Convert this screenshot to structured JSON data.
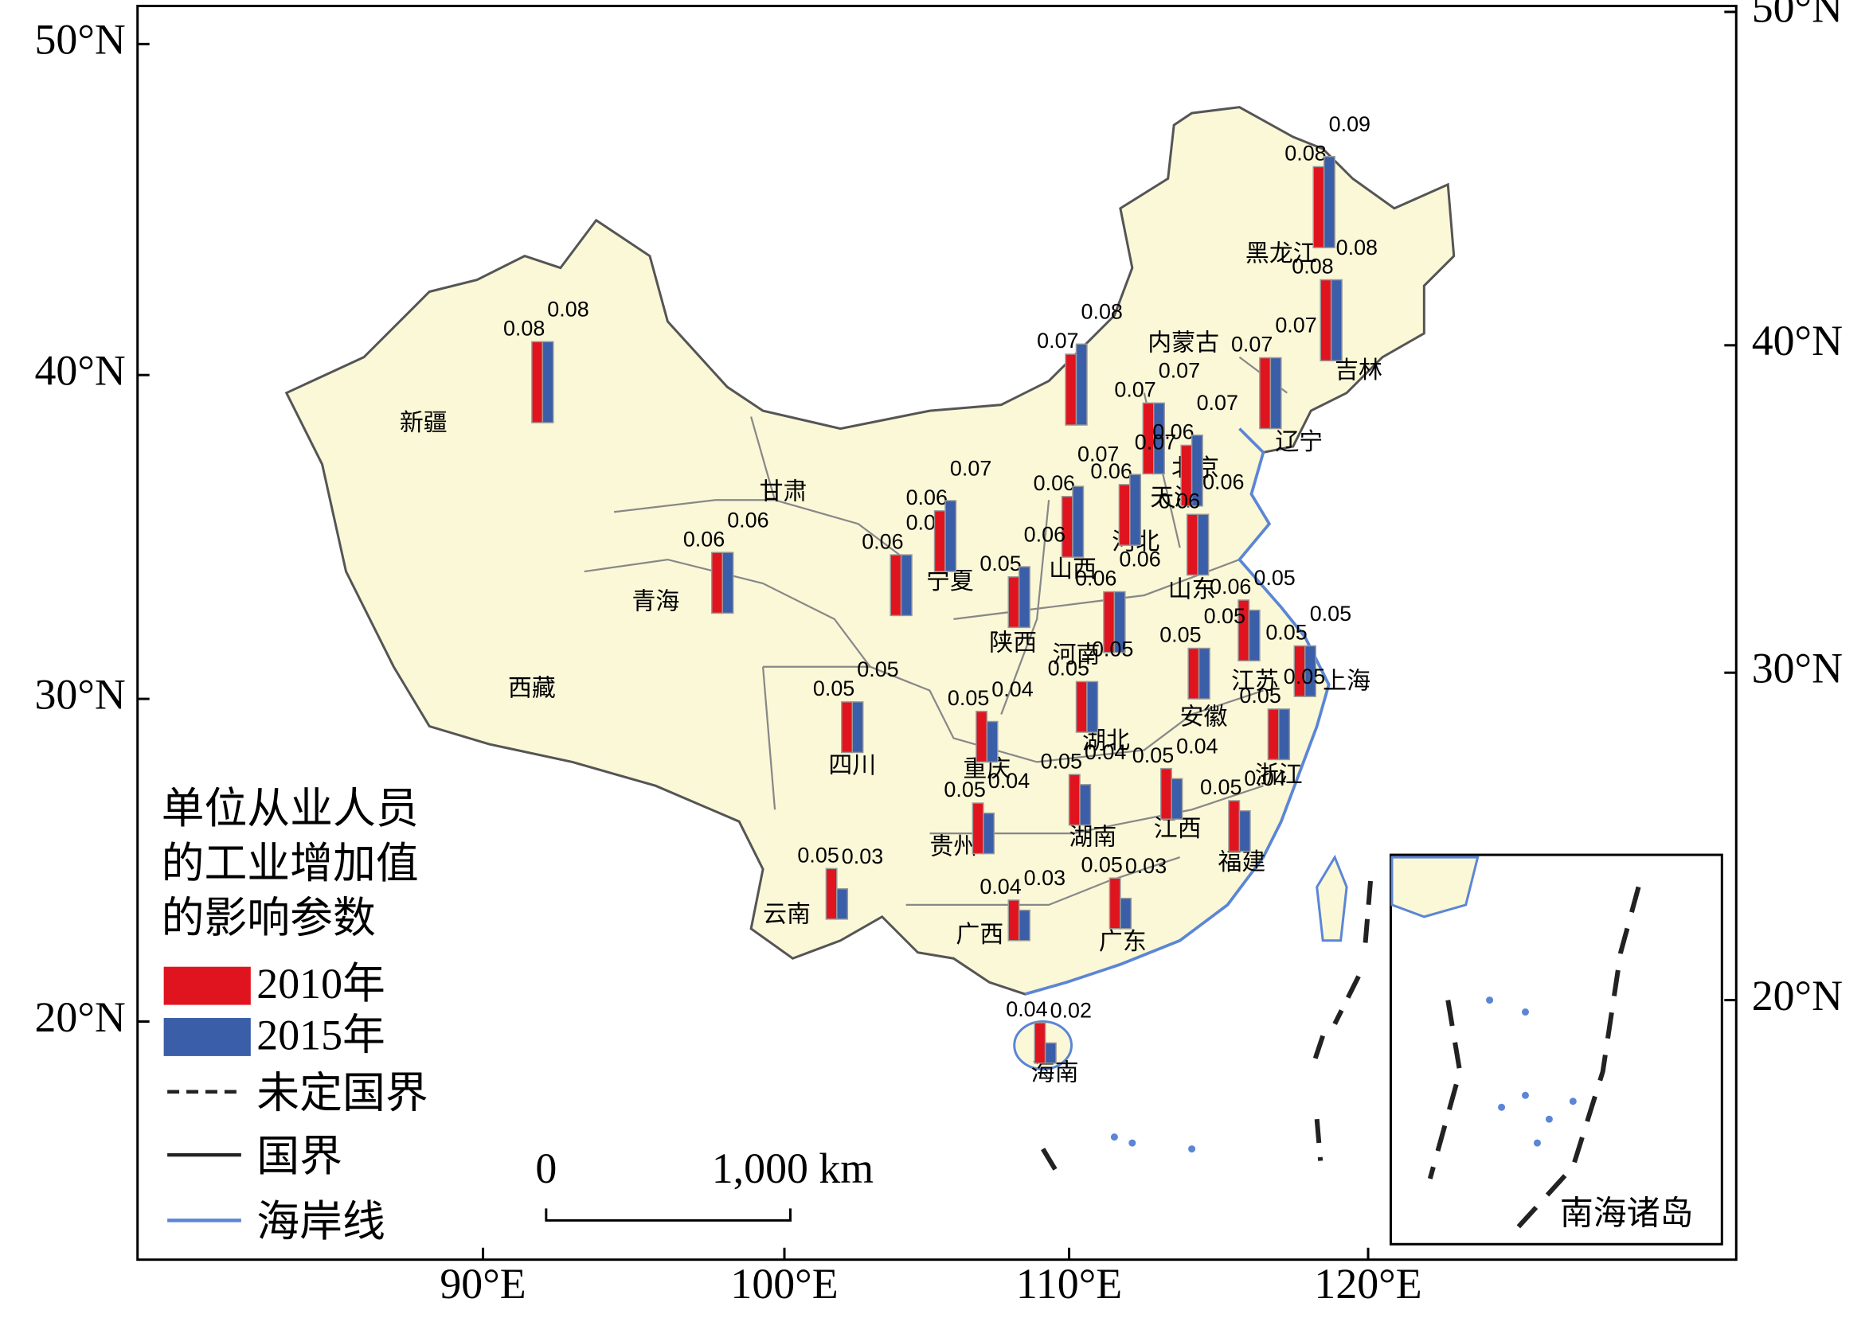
{
  "legend_title": [
    "单位从业人员",
    "的工业增加值",
    "的影响参数"
  ],
  "series": [
    {
      "name": "2010年",
      "color": "#e0141e"
    },
    {
      "name": "2015年",
      "color": "#3a5ea8"
    }
  ],
  "boundary_legend": [
    "未定国界",
    "国界",
    "海岸线"
  ],
  "lat_ticks_left": [
    {
      "value": 50,
      "label": "50°N"
    },
    {
      "value": 40,
      "label": "40°N"
    },
    {
      "value": 30,
      "label": "30°N"
    },
    {
      "value": 20,
      "label": "20°N"
    }
  ],
  "lat_ticks_right": [
    {
      "value": 50,
      "label": "50°N"
    },
    {
      "value": 40,
      "label": "40°N"
    },
    {
      "value": 30,
      "label": "30°N"
    },
    {
      "value": 20,
      "label": "20°N"
    }
  ],
  "lon_ticks": [
    {
      "value": 90,
      "label": "90°E"
    },
    {
      "value": 100,
      "label": "100°E"
    },
    {
      "value": 110,
      "label": "110°E"
    },
    {
      "value": 120,
      "label": "120°E"
    }
  ],
  "regions": [
    {
      "name": "黑龙江",
      "values": [
        0.08,
        0.09
      ]
    },
    {
      "name": "吉林",
      "values": [
        0.08,
        0.08
      ]
    },
    {
      "name": "内蒙古",
      "values": [
        0.07,
        0.08
      ]
    },
    {
      "name": "辽宁",
      "values": [
        0.07,
        0.07
      ]
    },
    {
      "name": "北京",
      "values": [
        0.07,
        0.07
      ]
    },
    {
      "name": "天津",
      "values": [
        0.06,
        0.07
      ]
    },
    {
      "name": "河北",
      "values": [
        0.06,
        0.07
      ]
    },
    {
      "name": "山西",
      "values": [
        0.06,
        0.07
      ]
    },
    {
      "name": "山东",
      "values": [
        0.06,
        0.06
      ]
    },
    {
      "name": "甘肃",
      "values": [
        0.06,
        0.06
      ]
    },
    {
      "name": "宁夏",
      "values": [
        0.06,
        0.07
      ]
    },
    {
      "name": "青海",
      "values": [
        0.06,
        0.06
      ]
    },
    {
      "name": "新疆",
      "values": [
        0.08,
        0.08
      ]
    },
    {
      "name": "陕西",
      "values": [
        0.05,
        0.06
      ]
    },
    {
      "name": "河南",
      "values": [
        0.06,
        0.06
      ]
    },
    {
      "name": "江苏",
      "values": [
        0.06,
        0.05
      ]
    },
    {
      "name": "上海",
      "values": [
        0.05,
        0.05
      ]
    },
    {
      "name": "安徽",
      "values": [
        0.05,
        0.05
      ]
    },
    {
      "name": "四川",
      "values": [
        0.05,
        0.05
      ]
    },
    {
      "name": "重庆",
      "values": [
        0.05,
        0.04
      ]
    },
    {
      "name": "湖北",
      "values": [
        0.05,
        0.05
      ]
    },
    {
      "name": "浙江",
      "values": [
        0.05,
        0.05
      ]
    },
    {
      "name": "贵州",
      "values": [
        0.05,
        0.04
      ]
    },
    {
      "name": "湖南",
      "values": [
        0.05,
        0.04
      ]
    },
    {
      "name": "江西",
      "values": [
        0.05,
        0.04
      ]
    },
    {
      "name": "福建",
      "values": [
        0.05,
        0.04
      ]
    },
    {
      "name": "云南",
      "values": [
        0.05,
        0.03
      ]
    },
    {
      "name": "广西",
      "values": [
        0.04,
        0.03
      ]
    },
    {
      "name": "广东",
      "values": [
        0.05,
        0.03
      ]
    },
    {
      "name": "海南",
      "values": [
        0.04,
        0.02
      ]
    }
  ],
  "map_labels": [
    "西藏"
  ],
  "scale_bar": [
    "0",
    "1,000 km"
  ],
  "inset_label": "南海诸岛"
}
